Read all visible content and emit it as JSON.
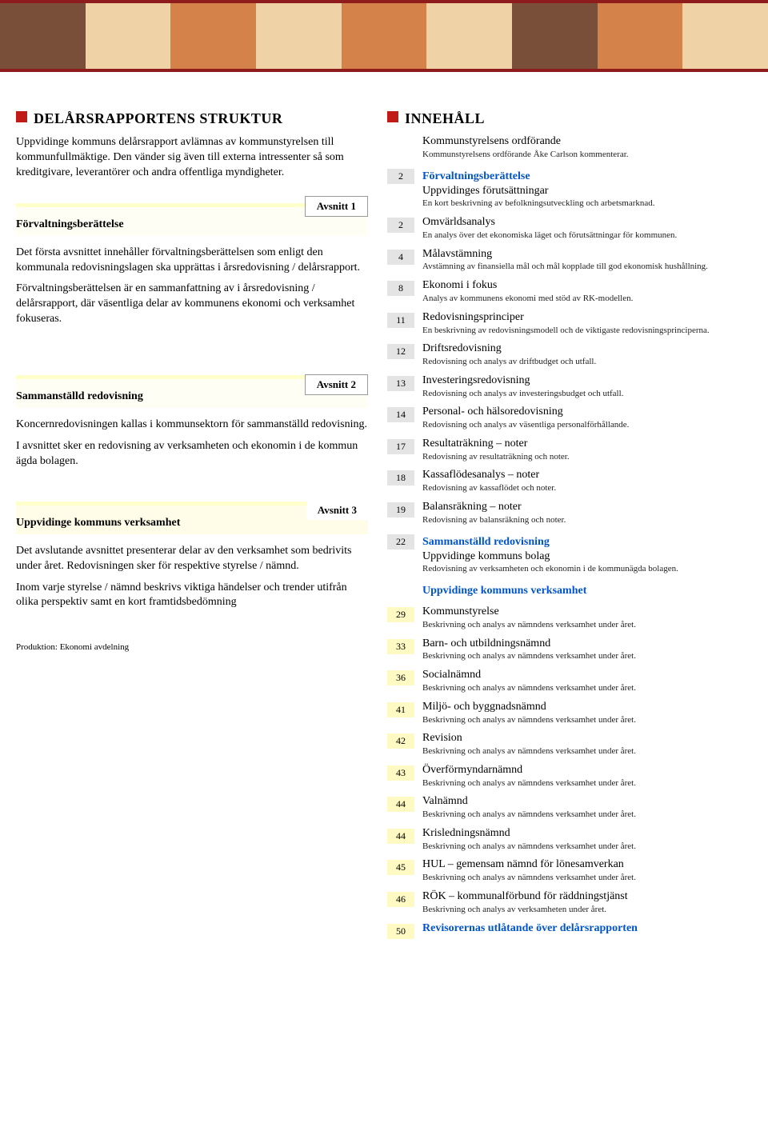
{
  "banner_colors": [
    "#7a4f3a",
    "#efd3a6",
    "#d4824a",
    "#efd3a6",
    "#d4824a",
    "#efd3a6",
    "#7a4f3a",
    "#d4824a",
    "#efd3a6"
  ],
  "left": {
    "h1": "DELÅRSRAPPORTENS STRUKTUR",
    "p1": "Uppvidinge kommuns delårsrapport avlämnas av kommunstyrelsen till kommunfullmäktige. Den vänder sig även till externa intressenter så som kreditgivare, leverantörer och andra offentliga myndigheter.",
    "s1": {
      "tab": "Avsnitt 1",
      "title": "Förvaltningsberättelse",
      "p1": "Det första avsnittet innehåller förvaltningsberättelsen som enligt den kommunala redovisningslagen ska upprättas i årsredovisning / delårsrapport.",
      "p2": "Förvaltningsberättelsen är en sammanfattning av i årsredovisning / delårsrapport, där väsentliga delar av kommunens ekonomi och verksamhet fokuseras."
    },
    "s2": {
      "tab": "Avsnitt 2",
      "title": "Sammanställd redovisning",
      "p1": "Koncernredovisningen kallas i kommunsektorn för sammanställd redovisning.",
      "p2": "I avsnittet sker en redovisning av verksamheten och ekonomin i de kommun ägda bolagen."
    },
    "s3": {
      "tab": "Avsnitt 3",
      "title": "Uppvidinge kommuns verksamhet",
      "p1": "Det avslutande avsnittet presenterar delar av den verksamhet som bedrivits under året. Redovisningen sker för respektive styrelse / nämnd.",
      "p2": "Inom varje styrelse / nämnd beskrivs viktiga händelser och trender utifrån olika perspektiv samt en kort framtidsbedömning"
    },
    "footer": "Produktion: Ekonomi avdelning"
  },
  "right": {
    "h1": "INNEHÅLL",
    "items": [
      {
        "page": "",
        "cls": "",
        "title": "Kommunstyrelsens ordförande",
        "desc": "Kommunstyrelsens ordförande Åke Carlson kommenterar."
      },
      {
        "page": "2",
        "cls": "gray",
        "section": "Förvaltningsberättelse",
        "section_cls": "blue",
        "title": "Uppvidinges förutsättningar",
        "desc": "En kort beskrivning av befolkningsutveckling och arbetsmarknad."
      },
      {
        "page": "2",
        "cls": "gray",
        "title": "Omvärldsanalys",
        "desc": "En analys över det ekonomiska läget och förutsättningar för kommunen."
      },
      {
        "page": "4",
        "cls": "gray",
        "title": "Målavstämning",
        "desc": "Avstämning av finansiella mål och mål kopplade till god ekonomisk hushållning."
      },
      {
        "page": "8",
        "cls": "gray",
        "title": "Ekonomi i fokus",
        "desc": "Analys av kommunens ekonomi med stöd av RK-modellen."
      },
      {
        "page": "11",
        "cls": "gray",
        "title": "Redovisningsprinciper",
        "desc": "En beskrivning av redovisningsmodell och de viktigaste redovisningsprinciperna."
      },
      {
        "page": "12",
        "cls": "gray",
        "title": "Driftsredovisning",
        "desc": "Redovisning och analys av driftbudget och utfall."
      },
      {
        "page": "13",
        "cls": "gray",
        "title": "Investeringsredovisning",
        "desc": "Redovisning och analys av investeringsbudget och utfall."
      },
      {
        "page": "14",
        "cls": "gray",
        "title": "Personal- och hälsoredovisning",
        "desc": "Redovisning och analys av väsentliga personalförhållande."
      },
      {
        "page": "17",
        "cls": "gray",
        "title": "Resultaträkning – noter",
        "desc": "Redovisning av resultaträkning och noter."
      },
      {
        "page": "18",
        "cls": "gray",
        "title": "Kassaflödesanalys – noter",
        "desc": "Redovisning av kassaflödet och noter."
      },
      {
        "page": "19",
        "cls": "gray",
        "title": "Balansräkning – noter",
        "desc": "Redovisning av balansräkning och noter."
      },
      {
        "page": "22",
        "cls": "gray",
        "section": "Sammanställd redovisning",
        "section_cls": "blue",
        "title": "Uppvidinge kommuns bolag",
        "desc": "Redovisning av verksamheten och ekonomin i de kommunägda bolagen."
      },
      {
        "page": "",
        "cls": "",
        "section": "Uppvidinge kommuns verksamhet",
        "section_cls": "blue",
        "title": "",
        "desc": ""
      },
      {
        "page": "29",
        "cls": "yellow",
        "title": "Kommunstyrelse",
        "desc": "Beskrivning och analys av nämndens verksamhet under året."
      },
      {
        "page": "33",
        "cls": "yellow",
        "title": "Barn- och utbildningsnämnd",
        "desc": "Beskrivning och analys av nämndens verksamhet under året."
      },
      {
        "page": "36",
        "cls": "yellow",
        "title": "Socialnämnd",
        "desc": "Beskrivning och analys av nämndens verksamhet under året."
      },
      {
        "page": "41",
        "cls": "yellow",
        "title": "Miljö- och byggnadsnämnd",
        "desc": "Beskrivning och analys av nämndens verksamhet under året."
      },
      {
        "page": "42",
        "cls": "yellow",
        "title": "Revision",
        "desc": "Beskrivning och analys av nämndens verksamhet under året."
      },
      {
        "page": "43",
        "cls": "yellow",
        "title": "Överförmyndarnämnd",
        "desc": "Beskrivning och analys av nämndens verksamhet under året."
      },
      {
        "page": "44",
        "cls": "yellow",
        "title": "Valnämnd",
        "desc": "Beskrivning och analys av nämndens verksamhet under året."
      },
      {
        "page": "44",
        "cls": "yellow",
        "title": "Krisledningsnämnd",
        "desc": "Beskrivning och analys av nämndens verksamhet under året."
      },
      {
        "page": "45",
        "cls": "yellow",
        "title": "HUL – gemensam nämnd för lönesamverkan",
        "desc": "Beskrivning och analys av nämndens verksamhet under året."
      },
      {
        "page": "46",
        "cls": "yellow",
        "title": "RÖK – kommunalförbund för räddningstjänst",
        "desc": "Beskrivning och analys av verksamheten under året."
      },
      {
        "page": "50",
        "cls": "yellow",
        "title": "Revisorernas utlåtande över delårsrapporten",
        "title_cls": "blue bold",
        "desc": ""
      }
    ]
  }
}
